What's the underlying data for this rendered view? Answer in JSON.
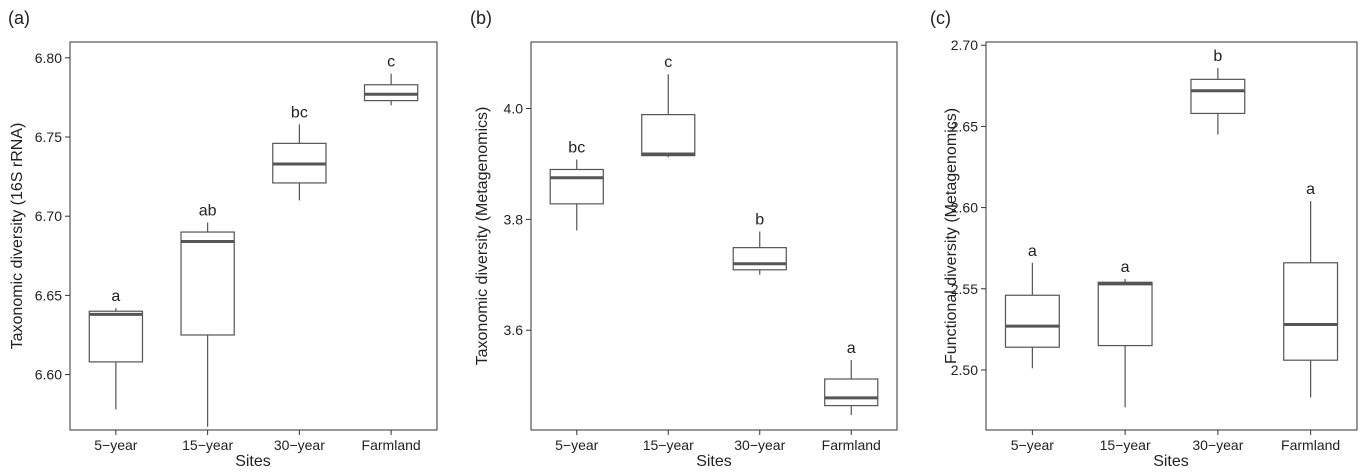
{
  "chart_data": [
    {
      "panel_label": "(a)",
      "type": "box",
      "categories": [
        "5−year",
        "15−year",
        "30−year",
        "Farmland"
      ],
      "xlabel": "Sites",
      "ylabel": "Taxonomic diversity (16S rRNA)",
      "ylim": [
        6.565,
        6.81
      ],
      "yticks": [
        6.6,
        6.65,
        6.7,
        6.75,
        6.8
      ],
      "ytick_labels": [
        "6.60",
        "6.65",
        "6.70",
        "6.75",
        "6.80"
      ],
      "grid": false,
      "boxes": [
        {
          "min": 6.578,
          "q1": 6.608,
          "median": 6.638,
          "q3": 6.64,
          "max": 6.642,
          "letter": "a"
        },
        {
          "min": 6.567,
          "q1": 6.625,
          "median": 6.684,
          "q3": 6.69,
          "max": 6.696,
          "letter": "ab"
        },
        {
          "min": 6.71,
          "q1": 6.721,
          "median": 6.733,
          "q3": 6.746,
          "max": 6.758,
          "letter": "bc"
        },
        {
          "min": 6.77,
          "q1": 6.773,
          "median": 6.777,
          "q3": 6.783,
          "max": 6.79,
          "letter": "c"
        }
      ]
    },
    {
      "panel_label": "(b)",
      "type": "box",
      "categories": [
        "5−year",
        "15−year",
        "30−year",
        "Farmland"
      ],
      "xlabel": "Sites",
      "ylabel": "Taxonomic diversity (Metagenomics)",
      "ylim": [
        3.42,
        4.12
      ],
      "yticks": [
        3.6,
        3.8,
        4.0
      ],
      "ytick_labels": [
        "3.6",
        "3.8",
        "4.0"
      ],
      "grid": false,
      "boxes": [
        {
          "min": 3.78,
          "q1": 3.828,
          "median": 3.875,
          "q3": 3.89,
          "max": 3.908,
          "letter": "bc"
        },
        {
          "min": 3.912,
          "q1": 3.915,
          "median": 3.918,
          "q3": 3.989,
          "max": 4.062,
          "letter": "c"
        },
        {
          "min": 3.7,
          "q1": 3.709,
          "median": 3.72,
          "q3": 3.749,
          "max": 3.778,
          "letter": "b"
        },
        {
          "min": 3.447,
          "q1": 3.464,
          "median": 3.478,
          "q3": 3.512,
          "max": 3.546,
          "letter": "a"
        }
      ]
    },
    {
      "panel_label": "(c)",
      "type": "box",
      "categories": [
        "5−year",
        "15−year",
        "30−year",
        "Farmland"
      ],
      "xlabel": "Sites",
      "ylabel": "Functional diversity (Metagenomics)",
      "ylim": [
        2.463,
        2.702
      ],
      "yticks": [
        2.5,
        2.55,
        2.6,
        2.65,
        2.7
      ],
      "ytick_labels": [
        "2.50",
        "2.55",
        "2.60",
        "2.65",
        "2.70"
      ],
      "grid": false,
      "boxes": [
        {
          "min": 2.501,
          "q1": 2.514,
          "median": 2.527,
          "q3": 2.546,
          "max": 2.566,
          "letter": "a"
        },
        {
          "min": 2.477,
          "q1": 2.515,
          "median": 2.553,
          "q3": 2.554,
          "max": 2.556,
          "letter": "a"
        },
        {
          "min": 2.645,
          "q1": 2.658,
          "median": 2.672,
          "q3": 2.679,
          "max": 2.686,
          "letter": "b"
        },
        {
          "min": 2.483,
          "q1": 2.506,
          "median": 2.528,
          "q3": 2.566,
          "max": 2.604,
          "letter": "a"
        }
      ]
    }
  ],
  "style": {
    "box_stroke": "#555555",
    "median_stroke": "#555555",
    "text_color": "#222222",
    "axis_color": "#333333"
  }
}
